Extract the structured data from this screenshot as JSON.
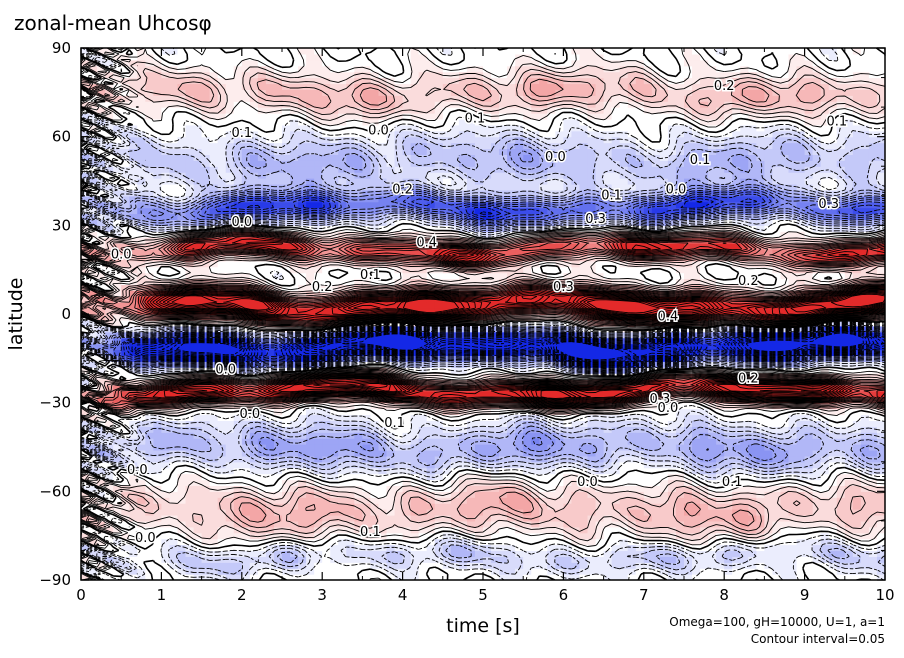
{
  "chart_data": {
    "type": "heatmap",
    "title": "zonal-mean Uhcosφ",
    "xlabel": "time [s]",
    "ylabel": "latitude",
    "xlim": [
      0,
      10
    ],
    "ylim": [
      -90,
      90
    ],
    "xticks": [
      "0",
      "1",
      "2",
      "3",
      "4",
      "5",
      "6",
      "7",
      "8",
      "9",
      "10"
    ],
    "yticks": [
      "90",
      "60",
      "30",
      "0",
      "−30",
      "−60",
      "−90"
    ],
    "footnote_line1": "Omega=100, gH=10000, U=1, a=1",
    "footnote_line2": "Contour interval=0.05",
    "colors": {
      "positive": "#e32a2a",
      "negative": "#1428e6",
      "zero": "#ffffff"
    },
    "bands": [
      {
        "lat": 75,
        "value": 0.2,
        "width": 7
      },
      {
        "lat": 52,
        "value": -0.2,
        "width": 9
      },
      {
        "lat": 36,
        "value": -0.5,
        "width": 5
      },
      {
        "lat": 22,
        "value": 0.6,
        "width": 4
      },
      {
        "lat": 3,
        "value": 0.95,
        "width": 5
      },
      {
        "lat": -11,
        "value": -1.0,
        "width": 5
      },
      {
        "lat": -26,
        "value": 0.85,
        "width": 4
      },
      {
        "lat": -45,
        "value": -0.25,
        "width": 8
      },
      {
        "lat": -66,
        "value": 0.2,
        "width": 9
      },
      {
        "lat": -82,
        "value": -0.15,
        "width": 5
      }
    ],
    "contour_labels": [
      {
        "t": 4.9,
        "lat": 66,
        "text": "0.1"
      },
      {
        "t": 3.7,
        "lat": 62,
        "text": "0.0"
      },
      {
        "t": 2.0,
        "lat": 61,
        "text": "0.1"
      },
      {
        "t": 5.9,
        "lat": 53,
        "text": "0.0"
      },
      {
        "t": 7.7,
        "lat": 52,
        "text": "0.1"
      },
      {
        "t": 8.0,
        "lat": 77,
        "text": "0.2"
      },
      {
        "t": 9.4,
        "lat": 65,
        "text": "0.1"
      },
      {
        "t": 4.0,
        "lat": 42,
        "text": "0.2"
      },
      {
        "t": 6.6,
        "lat": 40,
        "text": "0.1"
      },
      {
        "t": 7.4,
        "lat": 42,
        "text": "0.0"
      },
      {
        "t": 9.3,
        "lat": 37,
        "text": "0.3"
      },
      {
        "t": 6.4,
        "lat": 32,
        "text": "0.3"
      },
      {
        "t": 2.0,
        "lat": 31,
        "text": "0.0"
      },
      {
        "t": 0.5,
        "lat": 20,
        "text": "0.0"
      },
      {
        "t": 3.6,
        "lat": 13,
        "text": "0.1"
      },
      {
        "t": 4.3,
        "lat": 24,
        "text": "0.4"
      },
      {
        "t": 8.3,
        "lat": 11,
        "text": "0.2"
      },
      {
        "t": 6.0,
        "lat": 9,
        "text": "0.3"
      },
      {
        "t": 3.0,
        "lat": 9,
        "text": "0.2"
      },
      {
        "t": 7.3,
        "lat": -1,
        "text": "0.4"
      },
      {
        "t": 1.8,
        "lat": -19,
        "text": "0.0"
      },
      {
        "t": 7.2,
        "lat": -29,
        "text": "0.3"
      },
      {
        "t": 7.3,
        "lat": -32,
        "text": "0.0"
      },
      {
        "t": 8.3,
        "lat": -22,
        "text": "0.2"
      },
      {
        "t": 3.9,
        "lat": -37,
        "text": "0.1"
      },
      {
        "t": 2.1,
        "lat": -34,
        "text": "0.0"
      },
      {
        "t": 0.7,
        "lat": -53,
        "text": "0.0"
      },
      {
        "t": 6.3,
        "lat": -57,
        "text": "0.0"
      },
      {
        "t": 8.1,
        "lat": -57,
        "text": "0.1"
      },
      {
        "t": 3.6,
        "lat": -74,
        "text": "0.1"
      },
      {
        "t": 0.8,
        "lat": -76,
        "text": "0.0"
      }
    ]
  }
}
